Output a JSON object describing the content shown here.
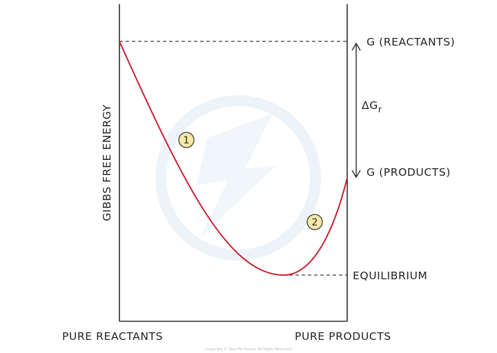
{
  "diagram": {
    "y_axis_label": "GIBBS FREE ENERGY",
    "x_left_label": "PURE REACTANTS",
    "x_right_label": "PURE PRODUCTS",
    "level_reactants": "G (REACTANTS)",
    "level_products": "G (PRODUCTS)",
    "level_equilibrium": "EQUILIBRIUM",
    "delta_label": "ΔG",
    "delta_subscript": "r",
    "badges": [
      "1",
      "2"
    ],
    "copyright": "Copyright © Save My Exams. All Rights Reserved",
    "colors": {
      "curve": "#c8202f",
      "axis": "#2b2b2b",
      "badge_fill": "#f6e7a6",
      "watermark": "#dbe9f4"
    }
  }
}
